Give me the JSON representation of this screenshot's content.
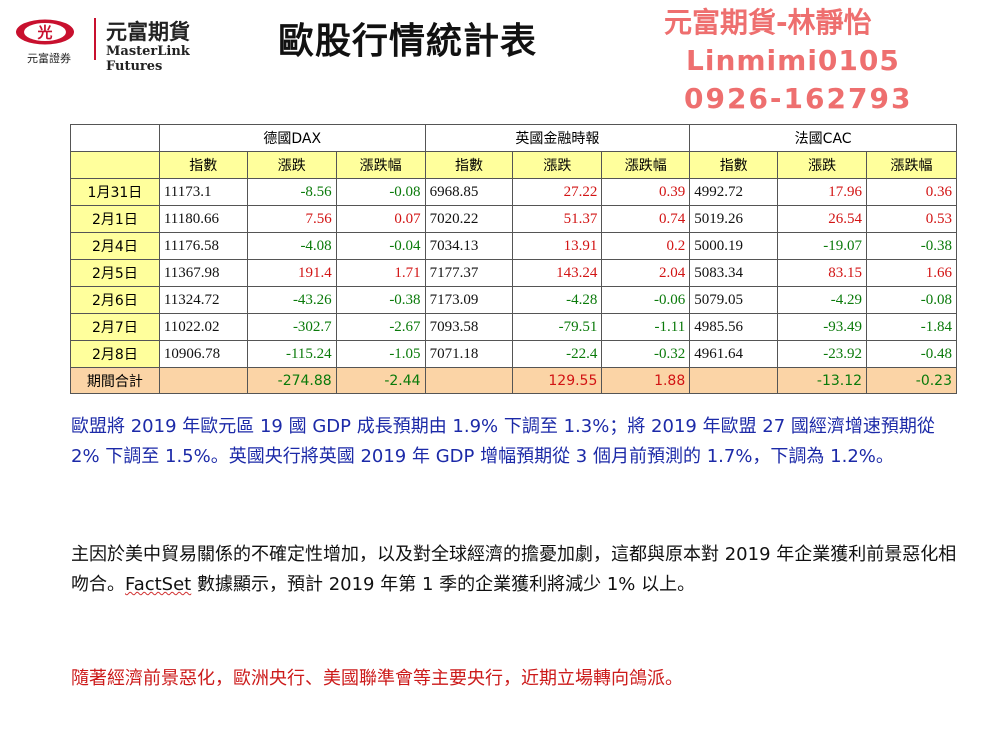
{
  "header": {
    "logo_mark_text": "光",
    "logo_sub": "元富證券",
    "logo_name": "元富期貨",
    "logo_en": "MasterLink Futures",
    "title": "歐股行情統計表",
    "contact": [
      "元富期貨-林靜怡",
      "Linmimi0105",
      "0926-162793"
    ],
    "contact_color": "#ee6f6f"
  },
  "table": {
    "markets": [
      "德國DAX",
      "英國金融時報",
      "法國CAC"
    ],
    "columns": [
      "指數",
      "漲跌",
      "漲跌幅"
    ],
    "rows": [
      {
        "date": "1月31日",
        "dax": [
          "11173.1",
          "-8.56",
          "-0.08"
        ],
        "ftse": [
          "6968.85",
          "27.22",
          "0.39"
        ],
        "cac": [
          "4992.72",
          "17.96",
          "0.36"
        ]
      },
      {
        "date": "2月1日",
        "dax": [
          "11180.66",
          "7.56",
          "0.07"
        ],
        "ftse": [
          "7020.22",
          "51.37",
          "0.74"
        ],
        "cac": [
          "5019.26",
          "26.54",
          "0.53"
        ]
      },
      {
        "date": "2月4日",
        "dax": [
          "11176.58",
          "-4.08",
          "-0.04"
        ],
        "ftse": [
          "7034.13",
          "13.91",
          "0.2"
        ],
        "cac": [
          "5000.19",
          "-19.07",
          "-0.38"
        ]
      },
      {
        "date": "2月5日",
        "dax": [
          "11367.98",
          "191.4",
          "1.71"
        ],
        "ftse": [
          "7177.37",
          "143.24",
          "2.04"
        ],
        "cac": [
          "5083.34",
          "83.15",
          "1.66"
        ]
      },
      {
        "date": "2月6日",
        "dax": [
          "11324.72",
          "-43.26",
          "-0.38"
        ],
        "ftse": [
          "7173.09",
          "-4.28",
          "-0.06"
        ],
        "cac": [
          "5079.05",
          "-4.29",
          "-0.08"
        ]
      },
      {
        "date": "2月7日",
        "dax": [
          "11022.02",
          "-302.7",
          "-2.67"
        ],
        "ftse": [
          "7093.58",
          "-79.51",
          "-1.11"
        ],
        "cac": [
          "4985.56",
          "-93.49",
          "-1.84"
        ]
      },
      {
        "date": "2月8日",
        "dax": [
          "10906.78",
          "-115.24",
          "-1.05"
        ],
        "ftse": [
          "7071.18",
          "-22.4",
          "-0.32"
        ],
        "cac": [
          "4961.64",
          "-23.92",
          "-0.48"
        ]
      }
    ],
    "total": {
      "label": "期間合計",
      "dax": [
        "",
        "-274.88",
        "-2.44"
      ],
      "ftse": [
        "",
        "129.55",
        "1.88"
      ],
      "cac": [
        "",
        "-13.12",
        "-0.23"
      ]
    },
    "colors": {
      "header_yellow": "#ffff9c",
      "total_orange": "#fbd4a6",
      "up": "#d21414",
      "down": "#0a7a0a"
    }
  },
  "paragraphs": {
    "p1": "歐盟將 2019 年歐元區 19 國 GDP 成長預期由 1.9% 下調至 1.3%；將 2019 年歐盟 27 國經濟增速預期從 2% 下調至 1.5%。英國央行將英國 2019 年 GDP 增幅預期從 3 個月前預測的 1.7%，下調為 1.2%。",
    "p2_a": "主因於美中貿易關係的不確定性增加，以及對全球經濟的擔憂加劇，這都與原本對 2019 年企業獲利前景惡化相吻合。",
    "p2_fact": "FactSet",
    "p2_b": " 數據顯示，預計 2019 年第 1 季的企業獲利將減少 1% 以上。",
    "p3": "隨著經濟前景惡化，歐洲央行、美國聯準會等主要央行，近期立場轉向鴿派。"
  }
}
